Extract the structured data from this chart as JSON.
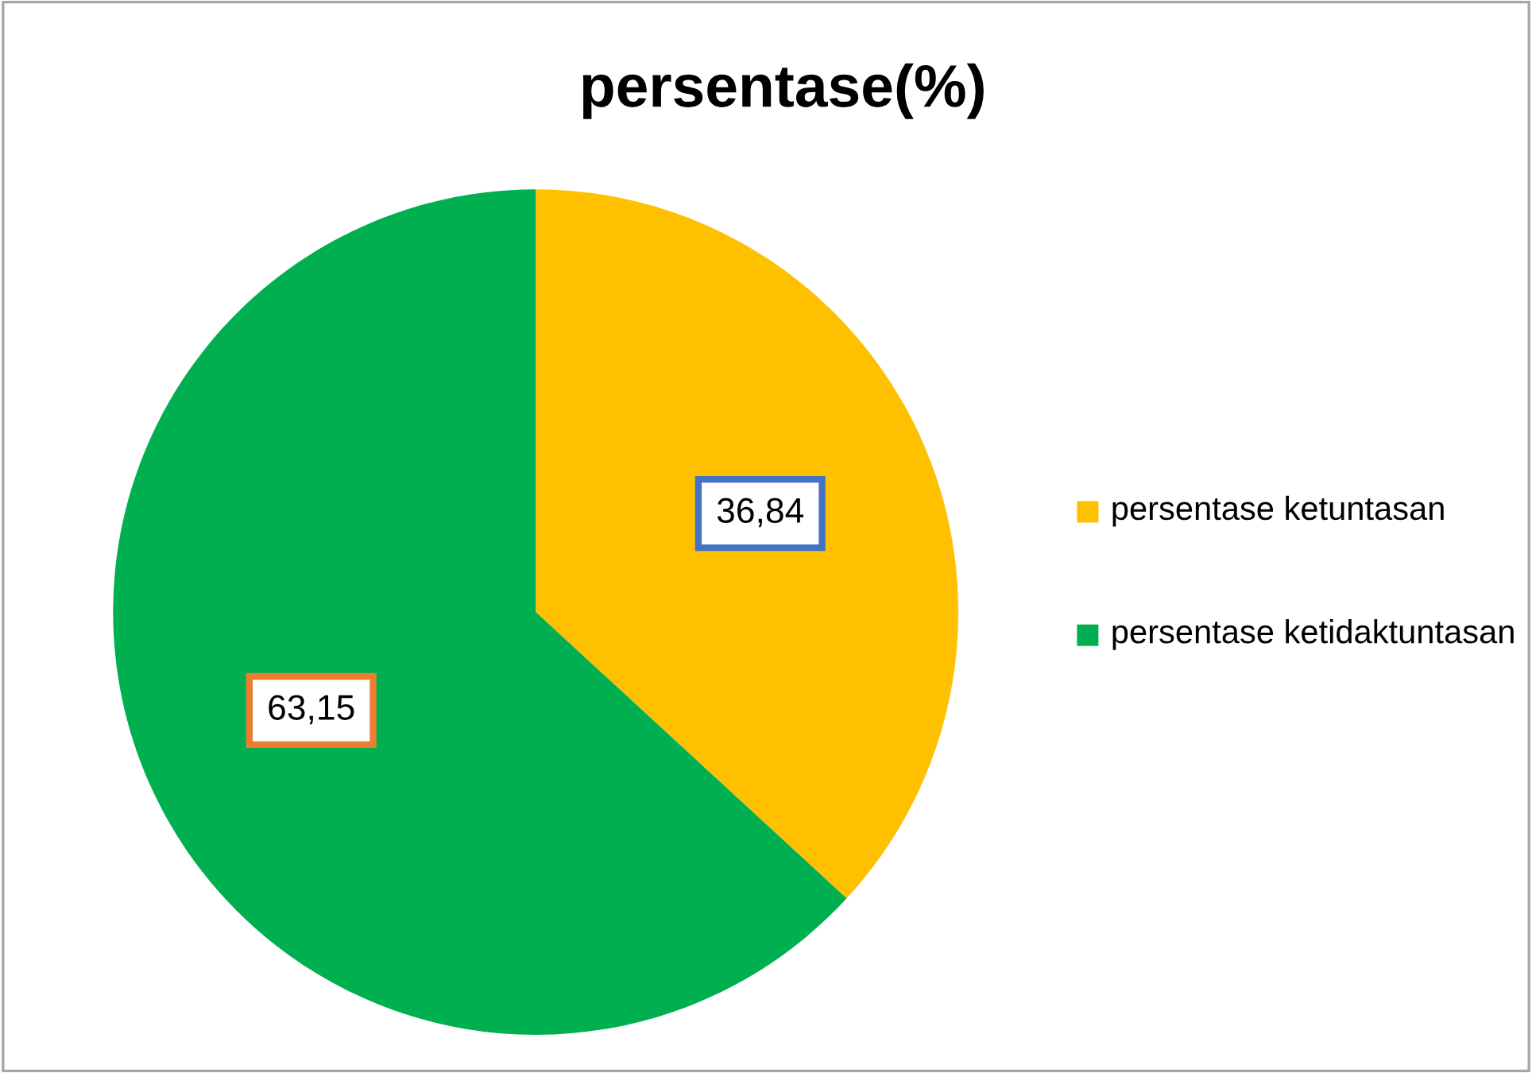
{
  "chart_data": {
    "type": "pie",
    "title": "persentase(%)",
    "categories": [
      "persentase ketuntasan",
      "persentase ketidaktuntasan"
    ],
    "values": [
      36.84,
      63.15
    ],
    "value_labels": [
      "36,84",
      "63,15"
    ],
    "colors": [
      "#ffc000",
      "#00b050"
    ],
    "legend": "right"
  }
}
